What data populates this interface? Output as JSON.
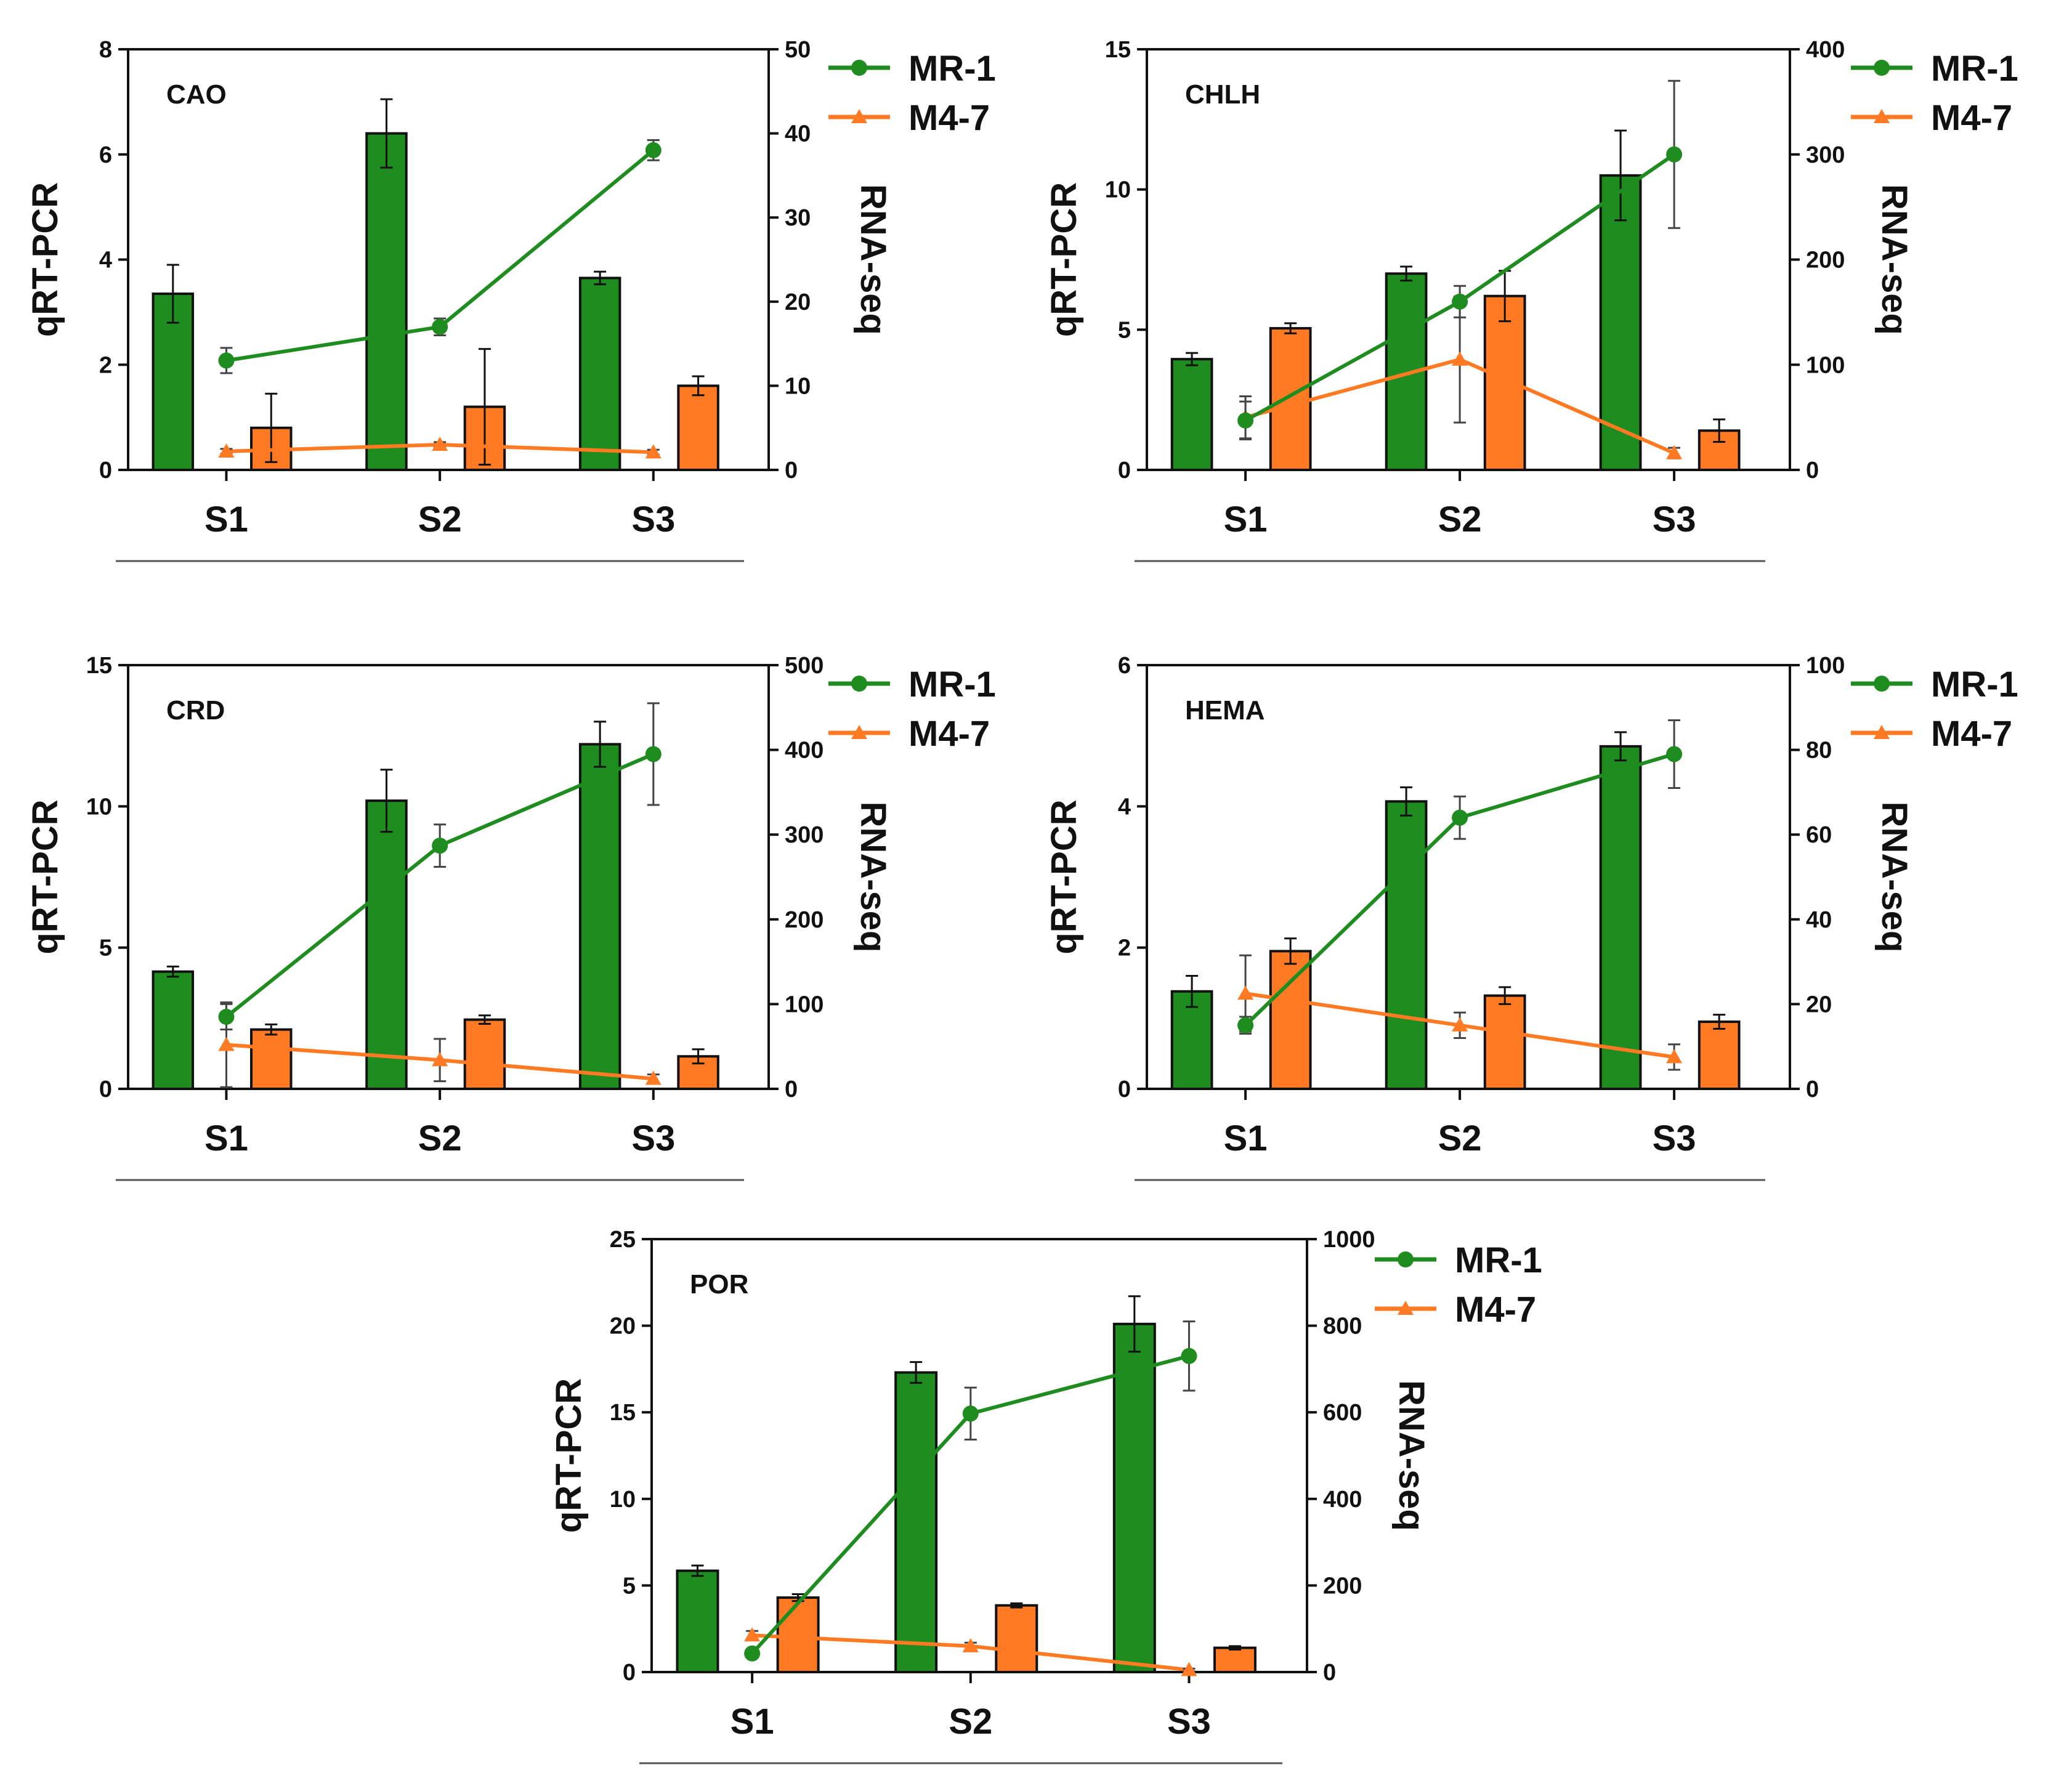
{
  "colors": {
    "MR-1": "#1f8c1f",
    "M4-7": "#ff7a22",
    "bar_stroke": "#111111",
    "axis": "#111111",
    "error_bar": "#444444"
  },
  "chart_data": [
    {
      "type": "bar",
      "gene": "CAO",
      "categories": [
        "S1",
        "S2",
        "S3"
      ],
      "ylabel": "qRT-PCR",
      "y2label": "RNA-seq",
      "ylim": [
        0,
        8
      ],
      "y2lim": [
        0,
        50
      ],
      "y_ticks": [
        "0",
        "2",
        "4",
        "6",
        "8"
      ],
      "y2_ticks": [
        "0",
        "10",
        "20",
        "30",
        "40",
        "50"
      ],
      "bar_series": [
        {
          "name": "MR-1",
          "values": [
            3.35,
            6.4,
            3.65
          ],
          "errors": [
            0.55,
            0.65,
            0.12
          ]
        },
        {
          "name": "M4-7",
          "values": [
            0.8,
            1.2,
            1.6
          ],
          "errors": [
            0.65,
            1.1,
            0.18
          ]
        }
      ],
      "line_series": [
        {
          "name": "MR-1",
          "values": [
            13,
            17,
            38
          ],
          "errors": [
            1.5,
            1.0,
            1.2
          ]
        },
        {
          "name": "M4-7",
          "values": [
            2.2,
            3.0,
            2.1
          ],
          "errors": [
            0.3,
            0.3,
            0.3
          ]
        }
      ]
    },
    {
      "type": "bar",
      "gene": "CHLH",
      "categories": [
        "S1",
        "S2",
        "S3"
      ],
      "ylabel": "qRT-PCR",
      "y2label": "RNA-seq",
      "ylim": [
        0,
        15
      ],
      "y2lim": [
        0,
        400
      ],
      "y_ticks": [
        "0",
        "5",
        "10",
        "15"
      ],
      "y2_ticks": [
        "0",
        "100",
        "200",
        "300",
        "400"
      ],
      "bar_series": [
        {
          "name": "MR-1",
          "values": [
            3.95,
            7.0,
            10.5
          ],
          "errors": [
            0.22,
            0.25,
            1.6
          ]
        },
        {
          "name": "M4-7",
          "values": [
            5.05,
            6.2,
            1.4
          ],
          "errors": [
            0.18,
            0.9,
            0.4
          ]
        }
      ],
      "line_series": [
        {
          "name": "MR-1",
          "values": [
            47,
            160,
            300
          ],
          "errors": [
            18,
            15,
            70
          ]
        },
        {
          "name": "M4-7",
          "values": [
            50,
            105,
            16
          ],
          "errors": [
            20,
            60,
            5
          ]
        }
      ]
    },
    {
      "type": "bar",
      "gene": "CRD",
      "categories": [
        "S1",
        "S2",
        "S3"
      ],
      "ylabel": "qRT-PCR",
      "y2label": "RNA-seq",
      "ylim": [
        0,
        15
      ],
      "y2lim": [
        0,
        500
      ],
      "y_ticks": [
        "0",
        "5",
        "10",
        "15"
      ],
      "y2_ticks": [
        "0",
        "100",
        "200",
        "300",
        "400",
        "500"
      ],
      "bar_series": [
        {
          "name": "MR-1",
          "values": [
            4.15,
            10.2,
            12.2
          ],
          "errors": [
            0.18,
            1.1,
            0.8
          ]
        },
        {
          "name": "M4-7",
          "values": [
            2.1,
            2.45,
            1.15
          ],
          "errors": [
            0.18,
            0.15,
            0.25
          ]
        }
      ],
      "line_series": [
        {
          "name": "MR-1",
          "values": [
            85,
            287,
            395
          ],
          "errors": [
            15,
            25,
            60
          ]
        },
        {
          "name": "M4-7",
          "values": [
            52,
            34,
            12
          ],
          "errors": [
            50,
            25,
            5
          ]
        }
      ]
    },
    {
      "type": "bar",
      "gene": "HEMA",
      "categories": [
        "S1",
        "S2",
        "S3"
      ],
      "ylabel": "qRT-PCR",
      "y2label": "RNA-seq",
      "ylim": [
        0,
        6
      ],
      "y2lim": [
        0,
        100
      ],
      "y_ticks": [
        "0",
        "2",
        "4",
        "6"
      ],
      "y2_ticks": [
        "0",
        "20",
        "40",
        "60",
        "80",
        "100"
      ],
      "bar_series": [
        {
          "name": "MR-1",
          "values": [
            1.38,
            4.07,
            4.85
          ],
          "errors": [
            0.22,
            0.2,
            0.2
          ]
        },
        {
          "name": "M4-7",
          "values": [
            1.95,
            1.32,
            0.95
          ],
          "errors": [
            0.18,
            0.12,
            0.1
          ]
        }
      ],
      "line_series": [
        {
          "name": "MR-1",
          "values": [
            15,
            64,
            79
          ],
          "errors": [
            2,
            5,
            8
          ]
        },
        {
          "name": "M4-7",
          "values": [
            22.5,
            15,
            7.5
          ],
          "errors": [
            9,
            3,
            3
          ]
        }
      ]
    },
    {
      "type": "bar",
      "gene": "POR",
      "categories": [
        "S1",
        "S2",
        "S3"
      ],
      "ylabel": "qRT-PCR",
      "y2label": "RNA-seq",
      "ylim": [
        0,
        25
      ],
      "y2lim": [
        0,
        1000
      ],
      "y_ticks": [
        "0",
        "5",
        "10",
        "15",
        "20",
        "25"
      ],
      "y2_ticks": [
        "0",
        "200",
        "400",
        "600",
        "800",
        "1000"
      ],
      "bar_series": [
        {
          "name": "MR-1",
          "values": [
            5.85,
            17.3,
            20.1
          ],
          "errors": [
            0.3,
            0.6,
            1.6
          ]
        },
        {
          "name": "M4-7",
          "values": [
            4.3,
            3.85,
            1.4
          ],
          "errors": [
            0.2,
            0.12,
            0.1
          ]
        }
      ],
      "line_series": [
        {
          "name": "MR-1",
          "values": [
            43,
            597,
            730
          ],
          "errors": [
            8,
            60,
            80
          ]
        },
        {
          "name": "M4-7",
          "values": [
            85,
            60,
            5
          ],
          "errors": [
            10,
            8,
            3
          ]
        }
      ]
    }
  ]
}
